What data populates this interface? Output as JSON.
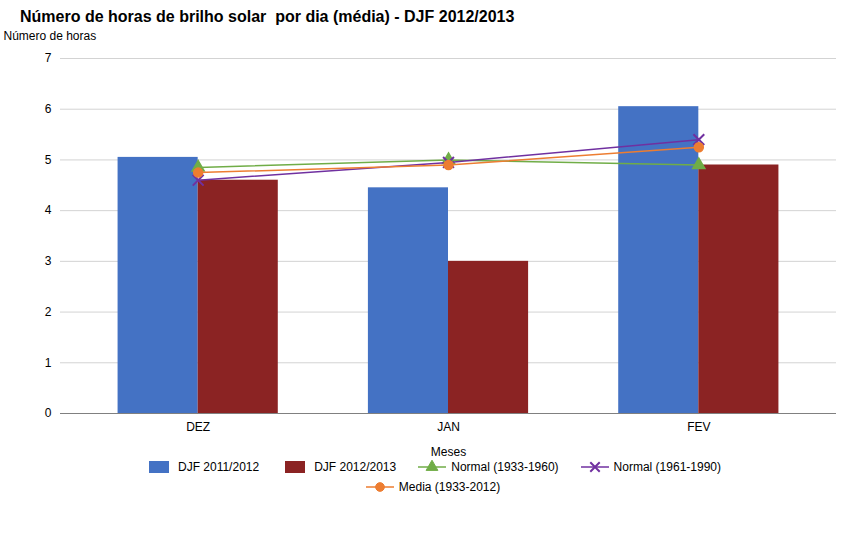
{
  "chart_data": {
    "type": "bar",
    "title": "Número de horas de brilho solar  por dia (média) - DJF 2012/2013",
    "xlabel": "Meses",
    "ylabel": "Número de horas",
    "categories": [
      "DEZ",
      "JAN",
      "FEV"
    ],
    "series": [
      {
        "name": "DJF 2011/2012",
        "type": "bar",
        "color": "#4472C4",
        "values": [
          5.05,
          4.45,
          6.05
        ]
      },
      {
        "name": "DJF 2012/2013",
        "type": "bar",
        "color": "#8B2323",
        "values": [
          4.6,
          3.0,
          4.9
        ]
      },
      {
        "name": "Normal (1933-1960)",
        "type": "line",
        "color": "#70AD47",
        "marker": "triangle",
        "values": [
          4.85,
          5.0,
          4.9
        ]
      },
      {
        "name": "Normal (1961-1990)",
        "type": "line",
        "color": "#7030A0",
        "marker": "x",
        "values": [
          4.6,
          4.95,
          5.4
        ]
      },
      {
        "name": "Media (1933-2012)",
        "type": "line",
        "color": "#ED7D31",
        "marker": "circle",
        "values": [
          4.75,
          4.9,
          5.25
        ]
      }
    ],
    "ylim": [
      0,
      7
    ],
    "yticks": [
      0,
      1,
      2,
      3,
      4,
      5,
      6,
      7
    ],
    "grid": true,
    "legend": "bottom"
  }
}
